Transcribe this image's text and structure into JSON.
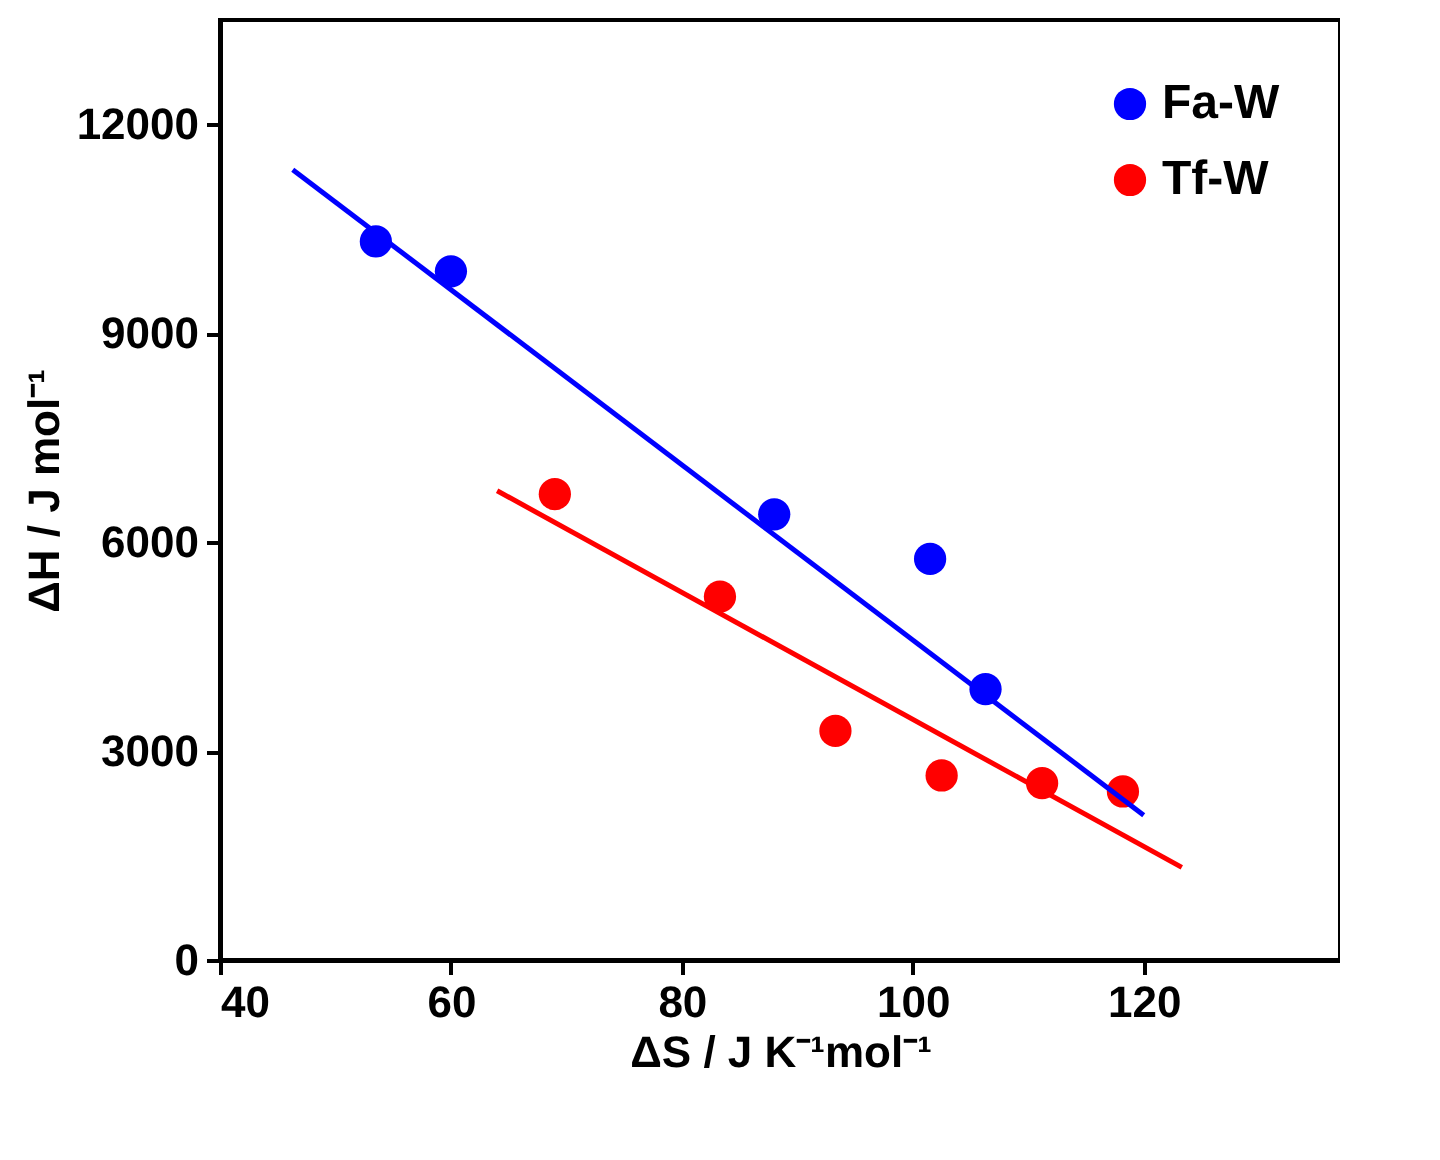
{
  "chart_data": {
    "type": "scatter",
    "xlabel": "ΔS / J K⁻¹mol⁻¹",
    "ylabel": "ΔH / J mol⁻¹",
    "xlim": [
      40,
      137
    ],
    "ylim": [
      0,
      13500
    ],
    "xticks": [
      40,
      60,
      80,
      100,
      120
    ],
    "yticks": [
      0,
      3000,
      6000,
      9000,
      12000
    ],
    "grid": false,
    "legend": "top right",
    "series": [
      {
        "name": "Fa-W",
        "color": "#0000ff",
        "marker": "circle",
        "x": [
          53.5,
          60,
          88,
          101.5,
          106.3
        ],
        "values": [
          10320,
          9890,
          6400,
          5760,
          3890
        ]
      },
      {
        "name": "Tf-W",
        "color": "#ff0000",
        "marker": "circle",
        "x": [
          69,
          83.3,
          93.3,
          102.5,
          111.2,
          118.2
        ],
        "values": [
          6690,
          5220,
          3290,
          2650,
          2540,
          2420
        ]
      },
      {
        "type": "line",
        "marker": "none",
        "color": "#0000ff",
        "x": [
          46.3,
          120
        ],
        "values": [
          11350,
          2080
        ]
      },
      {
        "type": "line",
        "marker": "none",
        "color": "#ff0000",
        "x": [
          64,
          123.3
        ],
        "values": [
          6740,
          1330
        ]
      }
    ]
  }
}
